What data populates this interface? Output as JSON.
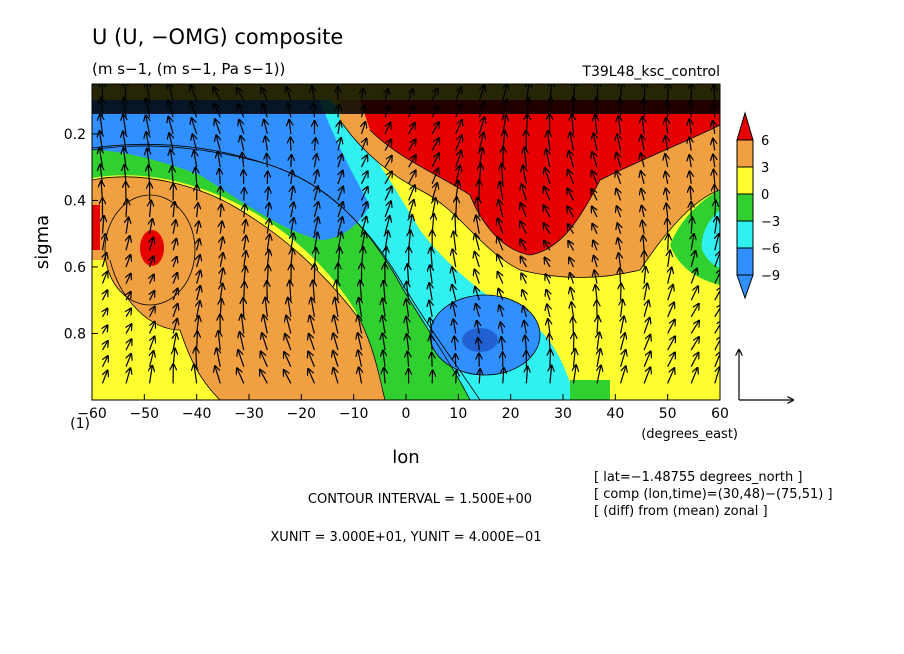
{
  "chart_data": {
    "type": "contour",
    "title": "U (U, −OMG) composite",
    "units": "(m s−1, (m s−1, Pa s−1))",
    "experiment": "T39L48_ksc_control",
    "xlabel": "lon",
    "xunits": "(degrees_east)",
    "ylabel": "sigma",
    "corner_label": "(1)",
    "x_ticks": [
      "−60",
      "−50",
      "−40",
      "−30",
      "−20",
      "−10",
      "0",
      "10",
      "20",
      "30",
      "40",
      "50",
      "60"
    ],
    "x_range": [
      -60,
      60
    ],
    "y_ticks": [
      "0.2",
      "0.4",
      "0.6",
      "0.8"
    ],
    "y_range": [
      0.05,
      1.0
    ],
    "colorbar": {
      "labels": [
        "6",
        "3",
        "0",
        "−3",
        "−6",
        "−9"
      ],
      "colors": [
        "#e60000",
        "#f0a040",
        "#ffff30",
        "#30d030",
        "#30f0f0",
        "#3090ff"
      ]
    },
    "contour_interval": "CONTOUR INTERVAL = 1.500E+00",
    "vector_units": "XUNIT = 3.000E+01, YUNIT = 4.000E−01",
    "info": [
      "[ lat=−1.48755 degrees_north ]",
      "[ comp (lon,time)=(30,48)−(75,51) ]",
      "[ (diff) from (mean) zonal ]"
    ],
    "features": [
      {
        "lon": -50,
        "sigma": 0.55,
        "value": 6
      },
      {
        "lon": -15,
        "sigma": 0.3,
        "value": -8
      },
      {
        "lon": 15,
        "sigma": 0.85,
        "value": -9
      },
      {
        "lon": 30,
        "sigma": 0.25,
        "value": 6
      }
    ]
  }
}
